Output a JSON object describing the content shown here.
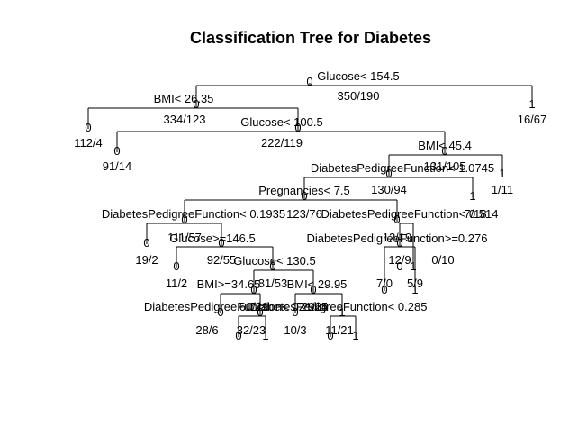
{
  "title": "Classification Tree for Diabetes",
  "nodes": [
    {
      "id": "root",
      "split": "Glucose< 154.5",
      "cls": "0",
      "counts": "350/190"
    },
    {
      "id": "n2",
      "split": "BMI< 26.35",
      "cls": "0",
      "counts": "334/123"
    },
    {
      "id": "n3",
      "split": "",
      "cls": "1",
      "counts": "16/67"
    },
    {
      "id": "n4",
      "split": "",
      "cls": "0",
      "counts": "112/4"
    },
    {
      "id": "n5",
      "split": "Glucose< 100.5",
      "cls": "0",
      "counts": "222/119"
    },
    {
      "id": "n10",
      "split": "",
      "cls": "0",
      "counts": "91/14"
    },
    {
      "id": "n11",
      "split": "BMI< 45.4",
      "cls": "0",
      "counts": "131/105"
    },
    {
      "id": "n22",
      "split": "DiabetesPedigreeFunction< 1.0745",
      "cls": "0",
      "counts": "130/94"
    },
    {
      "id": "n23",
      "split": "",
      "cls": "1",
      "counts": "1/11"
    },
    {
      "id": "n44",
      "split": "Pregnancies< 7.5",
      "cls": "0",
      "counts": "123/76"
    },
    {
      "id": "n45",
      "split": "",
      "cls": "1",
      "counts": "7/18"
    },
    {
      "id": "n88",
      "split": "DiabetesPedigreeFunction< 0.1935",
      "cls": "0",
      "counts": "111/57"
    },
    {
      "id": "n89",
      "split": "DiabetesPedigreeFunction< 0.514",
      "cls": "0",
      "counts": "12/19"
    },
    {
      "id": "n176",
      "split": "",
      "cls": "0",
      "counts": "19/2"
    },
    {
      "id": "n177",
      "split": "Glucose>=146.5",
      "cls": "0",
      "counts": "92/55"
    },
    {
      "id": "n354",
      "split": "",
      "cls": "0",
      "counts": "11/2"
    },
    {
      "id": "n355",
      "split": "Glucose< 130.5",
      "cls": "0",
      "counts": "81/53"
    },
    {
      "id": "n710",
      "split": "BMI>=34.65",
      "cls": "0",
      "counts": "60/29"
    },
    {
      "id": "n711",
      "split": "BMI< 29.95",
      "cls": "0",
      "counts": "21/24"
    },
    {
      "id": "n1420",
      "split": "",
      "cls": "0",
      "counts": "28/6"
    },
    {
      "id": "n1421",
      "split": "DiabetesPedigreeFunction< 0.2965",
      "cls": "0",
      "counts": "32/23"
    },
    {
      "id": "n2842",
      "split": "",
      "cls": "0",
      "counts": "32/23"
    },
    {
      "id": "n2843",
      "split": "",
      "cls": "1",
      "counts": ""
    },
    {
      "id": "n1422",
      "split": "",
      "cls": "0",
      "counts": "10/3"
    },
    {
      "id": "n1423",
      "split": "DiabetesPedigreeFunction< 0.285",
      "cls": "1",
      "counts": "11/21"
    },
    {
      "id": "n2846",
      "split": "",
      "cls": "0",
      "counts": ""
    },
    {
      "id": "n2847",
      "split": "",
      "cls": "1",
      "counts": "11/21"
    },
    {
      "id": "n178",
      "split": "DiabetesPedigreeFunction>=0.276",
      "cls": "0",
      "counts": "12/19"
    },
    {
      "id": "n356",
      "split": "",
      "cls": "0",
      "counts": "12/9"
    },
    {
      "id": "n357",
      "split": "",
      "cls": "1",
      "counts": "0/10"
    },
    {
      "id": "n712",
      "split": "",
      "cls": "0",
      "counts": "7/0"
    },
    {
      "id": "n713",
      "split": "",
      "cls": "1",
      "counts": "5/9"
    }
  ]
}
